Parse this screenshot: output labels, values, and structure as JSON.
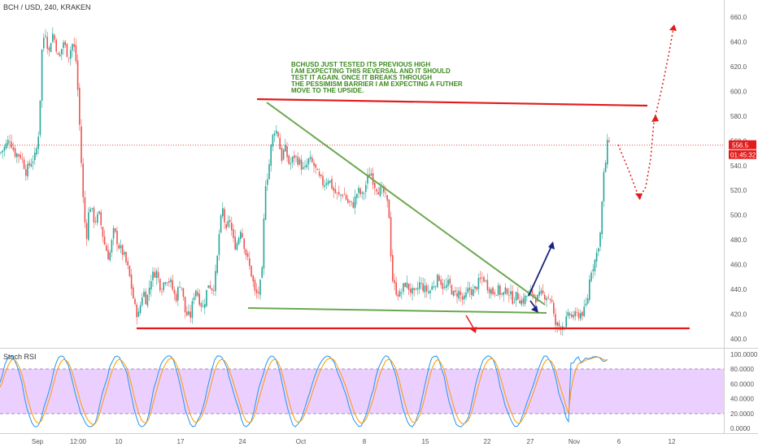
{
  "chart_data": {
    "type": "candlestick",
    "symbol": "BCH / USD, 240, KRAKEN",
    "price_axis": {
      "ylim": [
        395,
        668
      ],
      "ticks": [
        "660.0",
        "640.0",
        "620.0",
        "600.0",
        "580.0",
        "560.0",
        "540.0",
        "520.0",
        "500.0",
        "480.0",
        "460.0",
        "440.0",
        "420.0",
        "400.0"
      ]
    },
    "x_ticks": [
      "Sep",
      "12:00",
      "10",
      "17",
      "24",
      "Oct",
      "8",
      "15",
      "22",
      "27",
      "Nov",
      "6",
      "12"
    ],
    "current_price": "556.5",
    "countdown": "01:45:32",
    "annotation": [
      "BCHUSD JUST TESTED ITS PREVIOUS HIGH",
      "I AM EXPECTING THIS REVERSAL AND IT SHOULD",
      "TEST IT AGAIN.  ONCE IT BREAKS THROUGH",
      "THE PESSIMISM BARRIER I AM EXPECTING A FUTHER",
      "MOVE TO THE UPSIDE."
    ],
    "close_path": [
      [
        0,
        550
      ],
      [
        6,
        555
      ],
      [
        12,
        562
      ],
      [
        18,
        550
      ],
      [
        26,
        548
      ],
      [
        32,
        535
      ],
      [
        38,
        543
      ],
      [
        44,
        548
      ],
      [
        48,
        570
      ],
      [
        52,
        640
      ],
      [
        56,
        648
      ],
      [
        60,
        630
      ],
      [
        64,
        648
      ],
      [
        68,
        640
      ],
      [
        72,
        625
      ],
      [
        78,
        640
      ],
      [
        84,
        628
      ],
      [
        90,
        640
      ],
      [
        94,
        622
      ],
      [
        98,
        570
      ],
      [
        102,
        515
      ],
      [
        106,
        480
      ],
      [
        110,
        510
      ],
      [
        116,
        495
      ],
      [
        122,
        500
      ],
      [
        128,
        478
      ],
      [
        134,
        465
      ],
      [
        140,
        488
      ],
      [
        146,
        475
      ],
      [
        152,
        468
      ],
      [
        158,
        455
      ],
      [
        162,
        440
      ],
      [
        166,
        425
      ],
      [
        170,
        418
      ],
      [
        176,
        440
      ],
      [
        180,
        430
      ],
      [
        186,
        450
      ],
      [
        192,
        455
      ],
      [
        198,
        440
      ],
      [
        204,
        450
      ],
      [
        210,
        445
      ],
      [
        216,
        432
      ],
      [
        222,
        448
      ],
      [
        228,
        420
      ],
      [
        234,
        418
      ],
      [
        240,
        442
      ],
      [
        246,
        430
      ],
      [
        250,
        425
      ],
      [
        256,
        445
      ],
      [
        262,
        440
      ],
      [
        266,
        455
      ],
      [
        270,
        490
      ],
      [
        274,
        505
      ],
      [
        278,
        485
      ],
      [
        282,
        498
      ],
      [
        288,
        475
      ],
      [
        292,
        478
      ],
      [
        296,
        490
      ],
      [
        302,
        470
      ],
      [
        306,
        460
      ],
      [
        310,
        450
      ],
      [
        314,
        435
      ],
      [
        318,
        438
      ],
      [
        322,
        450
      ],
      [
        326,
        525
      ],
      [
        330,
        535
      ],
      [
        334,
        560
      ],
      [
        338,
        570
      ],
      [
        342,
        565
      ],
      [
        346,
        545
      ],
      [
        350,
        555
      ],
      [
        356,
        540
      ],
      [
        362,
        548
      ],
      [
        368,
        543
      ],
      [
        374,
        535
      ],
      [
        380,
        545
      ],
      [
        386,
        540
      ],
      [
        392,
        530
      ],
      [
        398,
        525
      ],
      [
        404,
        530
      ],
      [
        410,
        520
      ],
      [
        416,
        515
      ],
      [
        422,
        518
      ],
      [
        428,
        510
      ],
      [
        434,
        508
      ],
      [
        440,
        520
      ],
      [
        446,
        515
      ],
      [
        452,
        530
      ],
      [
        456,
        535
      ],
      [
        460,
        525
      ],
      [
        466,
        520
      ],
      [
        472,
        518
      ],
      [
        478,
        505
      ],
      [
        482,
        450
      ],
      [
        486,
        440
      ],
      [
        492,
        435
      ],
      [
        498,
        445
      ],
      [
        504,
        440
      ],
      [
        510,
        435
      ],
      [
        516,
        445
      ],
      [
        522,
        440
      ],
      [
        528,
        438
      ],
      [
        534,
        445
      ],
      [
        540,
        450
      ],
      [
        546,
        440
      ],
      [
        552,
        445
      ],
      [
        558,
        435
      ],
      [
        564,
        438
      ],
      [
        570,
        430
      ],
      [
        576,
        440
      ],
      [
        582,
        438
      ],
      [
        588,
        445
      ],
      [
        594,
        450
      ],
      [
        600,
        442
      ],
      [
        606,
        438
      ],
      [
        612,
        440
      ],
      [
        618,
        435
      ],
      [
        624,
        440
      ],
      [
        630,
        432
      ],
      [
        636,
        435
      ],
      [
        642,
        430
      ],
      [
        648,
        435
      ],
      [
        654,
        438
      ],
      [
        660,
        432
      ],
      [
        666,
        436
      ],
      [
        672,
        435
      ],
      [
        678,
        432
      ],
      [
        682,
        412
      ],
      [
        688,
        410
      ],
      [
        694,
        412
      ],
      [
        700,
        420
      ],
      [
        706,
        418
      ],
      [
        712,
        420
      ],
      [
        718,
        422
      ],
      [
        722,
        430
      ],
      [
        726,
        455
      ],
      [
        730,
        460
      ],
      [
        734,
        470
      ],
      [
        738,
        485
      ],
      [
        742,
        530
      ],
      [
        745,
        545
      ],
      [
        748,
        565
      ],
      [
        751,
        556.5
      ]
    ],
    "stoch_rsi": {
      "ylim": [
        0,
        100
      ],
      "ticks": [
        "100.0000",
        "80.0000",
        "60.0000",
        "40.0000",
        "20.0000",
        "0.0000"
      ],
      "band": [
        20,
        80
      ],
      "label": "Stoch RSI"
    },
    "colors": {
      "up": "#26a69a",
      "down": "#ef5350",
      "resistance": "#e31b1b",
      "triangle": "#6aa84f",
      "arrow_up": "#1a237e",
      "projection": "#e31b1b",
      "band_fill": "#e8c8ff",
      "stoch_k": "#2196f3",
      "stoch_d": "#ff9800"
    }
  }
}
